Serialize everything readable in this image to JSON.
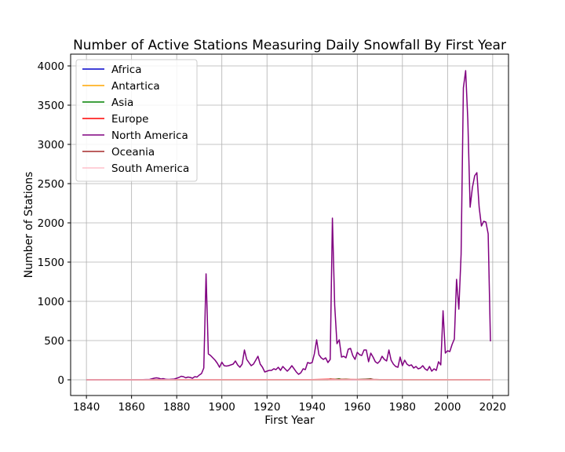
{
  "chart_data": {
    "type": "line",
    "title": "Number of Active Stations Measuring Daily Snowfall By First Year",
    "xlabel": "First Year",
    "ylabel": "Number of Stations",
    "xlim": [
      1833,
      2027
    ],
    "ylim": [
      -200,
      4150
    ],
    "xticks": [
      1840,
      1860,
      1880,
      1900,
      1920,
      1940,
      1960,
      1980,
      2000,
      2020
    ],
    "yticks": [
      0,
      500,
      1000,
      1500,
      2000,
      2500,
      3000,
      3500,
      4000
    ],
    "grid": true,
    "legend_position": "upper-left",
    "series": [
      {
        "name": "Africa",
        "color": "#0000cc",
        "points": [
          [
            1840,
            0
          ],
          [
            2019,
            0
          ]
        ]
      },
      {
        "name": "Antartica",
        "color": "#ffa500",
        "points": [
          [
            1840,
            0
          ],
          [
            1957,
            0
          ],
          [
            1958,
            2
          ],
          [
            1960,
            0
          ],
          [
            2019,
            0
          ]
        ]
      },
      {
        "name": "Asia",
        "color": "#008000",
        "points": [
          [
            1840,
            0
          ],
          [
            1947,
            0
          ],
          [
            1948,
            10
          ],
          [
            1950,
            5
          ],
          [
            1952,
            12
          ],
          [
            1953,
            5
          ],
          [
            1955,
            8
          ],
          [
            1957,
            3
          ],
          [
            1960,
            2
          ],
          [
            1962,
            5
          ],
          [
            1965,
            10
          ],
          [
            1966,
            12
          ],
          [
            1967,
            4
          ],
          [
            1970,
            0
          ],
          [
            2019,
            0
          ]
        ]
      },
      {
        "name": "Europe",
        "color": "#ff0000",
        "points": [
          [
            1840,
            0
          ],
          [
            1870,
            0
          ],
          [
            1880,
            2
          ],
          [
            1900,
            3
          ],
          [
            1920,
            2
          ],
          [
            1940,
            3
          ],
          [
            1948,
            8
          ],
          [
            1950,
            6
          ],
          [
            1955,
            5
          ],
          [
            1960,
            4
          ],
          [
            1970,
            3
          ],
          [
            2019,
            0
          ]
        ]
      },
      {
        "name": "North America",
        "color": "#800080",
        "points": [
          [
            1840,
            0
          ],
          [
            1860,
            0
          ],
          [
            1865,
            2
          ],
          [
            1868,
            5
          ],
          [
            1870,
            20
          ],
          [
            1871,
            25
          ],
          [
            1872,
            20
          ],
          [
            1873,
            10
          ],
          [
            1874,
            15
          ],
          [
            1875,
            8
          ],
          [
            1876,
            5
          ],
          [
            1877,
            6
          ],
          [
            1878,
            8
          ],
          [
            1879,
            10
          ],
          [
            1880,
            20
          ],
          [
            1881,
            30
          ],
          [
            1882,
            45
          ],
          [
            1883,
            40
          ],
          [
            1884,
            25
          ],
          [
            1885,
            35
          ],
          [
            1886,
            30
          ],
          [
            1887,
            20
          ],
          [
            1888,
            40
          ],
          [
            1889,
            35
          ],
          [
            1890,
            60
          ],
          [
            1891,
            80
          ],
          [
            1892,
            150
          ],
          [
            1893,
            1350
          ],
          [
            1894,
            330
          ],
          [
            1895,
            310
          ],
          [
            1896,
            280
          ],
          [
            1897,
            250
          ],
          [
            1898,
            210
          ],
          [
            1899,
            160
          ],
          [
            1900,
            225
          ],
          [
            1901,
            180
          ],
          [
            1902,
            175
          ],
          [
            1903,
            180
          ],
          [
            1904,
            190
          ],
          [
            1905,
            200
          ],
          [
            1906,
            240
          ],
          [
            1907,
            190
          ],
          [
            1908,
            160
          ],
          [
            1909,
            200
          ],
          [
            1910,
            380
          ],
          [
            1911,
            260
          ],
          [
            1912,
            220
          ],
          [
            1913,
            180
          ],
          [
            1914,
            200
          ],
          [
            1915,
            250
          ],
          [
            1916,
            300
          ],
          [
            1917,
            200
          ],
          [
            1918,
            160
          ],
          [
            1919,
            100
          ],
          [
            1920,
            110
          ],
          [
            1921,
            120
          ],
          [
            1922,
            120
          ],
          [
            1923,
            140
          ],
          [
            1924,
            130
          ],
          [
            1925,
            160
          ],
          [
            1926,
            120
          ],
          [
            1927,
            170
          ],
          [
            1928,
            140
          ],
          [
            1929,
            110
          ],
          [
            1930,
            140
          ],
          [
            1931,
            180
          ],
          [
            1932,
            140
          ],
          [
            1933,
            100
          ],
          [
            1934,
            70
          ],
          [
            1935,
            90
          ],
          [
            1936,
            140
          ],
          [
            1937,
            130
          ],
          [
            1938,
            220
          ],
          [
            1939,
            210
          ],
          [
            1940,
            220
          ],
          [
            1941,
            330
          ],
          [
            1942,
            510
          ],
          [
            1943,
            320
          ],
          [
            1944,
            280
          ],
          [
            1945,
            260
          ],
          [
            1946,
            280
          ],
          [
            1947,
            220
          ],
          [
            1948,
            260
          ],
          [
            1949,
            2060
          ],
          [
            1950,
            950
          ],
          [
            1951,
            460
          ],
          [
            1952,
            510
          ],
          [
            1953,
            290
          ],
          [
            1954,
            300
          ],
          [
            1955,
            280
          ],
          [
            1956,
            390
          ],
          [
            1957,
            400
          ],
          [
            1958,
            310
          ],
          [
            1959,
            260
          ],
          [
            1960,
            350
          ],
          [
            1961,
            320
          ],
          [
            1962,
            310
          ],
          [
            1963,
            380
          ],
          [
            1964,
            380
          ],
          [
            1965,
            230
          ],
          [
            1966,
            340
          ],
          [
            1967,
            290
          ],
          [
            1968,
            230
          ],
          [
            1969,
            210
          ],
          [
            1970,
            240
          ],
          [
            1971,
            300
          ],
          [
            1972,
            260
          ],
          [
            1973,
            240
          ],
          [
            1974,
            380
          ],
          [
            1975,
            250
          ],
          [
            1976,
            200
          ],
          [
            1977,
            170
          ],
          [
            1978,
            160
          ],
          [
            1979,
            290
          ],
          [
            1980,
            180
          ],
          [
            1981,
            250
          ],
          [
            1982,
            200
          ],
          [
            1983,
            180
          ],
          [
            1984,
            190
          ],
          [
            1985,
            150
          ],
          [
            1986,
            170
          ],
          [
            1987,
            140
          ],
          [
            1988,
            150
          ],
          [
            1989,
            180
          ],
          [
            1990,
            140
          ],
          [
            1991,
            120
          ],
          [
            1992,
            170
          ],
          [
            1993,
            110
          ],
          [
            1994,
            140
          ],
          [
            1995,
            120
          ],
          [
            1996,
            230
          ],
          [
            1997,
            190
          ],
          [
            1998,
            880
          ],
          [
            1999,
            340
          ],
          [
            2000,
            370
          ],
          [
            2001,
            360
          ],
          [
            2002,
            450
          ],
          [
            2003,
            520
          ],
          [
            2004,
            1280
          ],
          [
            2005,
            900
          ],
          [
            2006,
            1600
          ],
          [
            2007,
            3720
          ],
          [
            2008,
            3940
          ],
          [
            2009,
            3300
          ],
          [
            2010,
            2200
          ],
          [
            2011,
            2450
          ],
          [
            2012,
            2600
          ],
          [
            2013,
            2640
          ],
          [
            2014,
            2200
          ],
          [
            2015,
            1960
          ],
          [
            2016,
            2020
          ],
          [
            2017,
            2010
          ],
          [
            2018,
            1860
          ],
          [
            2019,
            490
          ]
        ]
      },
      {
        "name": "Oceania",
        "color": "#a52a2a",
        "points": [
          [
            1840,
            0
          ],
          [
            1940,
            0
          ],
          [
            1950,
            2
          ],
          [
            1960,
            3
          ],
          [
            1965,
            8
          ],
          [
            1966,
            10
          ],
          [
            1967,
            5
          ],
          [
            1970,
            2
          ],
          [
            2019,
            0
          ]
        ]
      },
      {
        "name": "South America",
        "color": "#ffc0cb",
        "points": [
          [
            1840,
            0
          ],
          [
            2019,
            0
          ]
        ]
      }
    ]
  }
}
